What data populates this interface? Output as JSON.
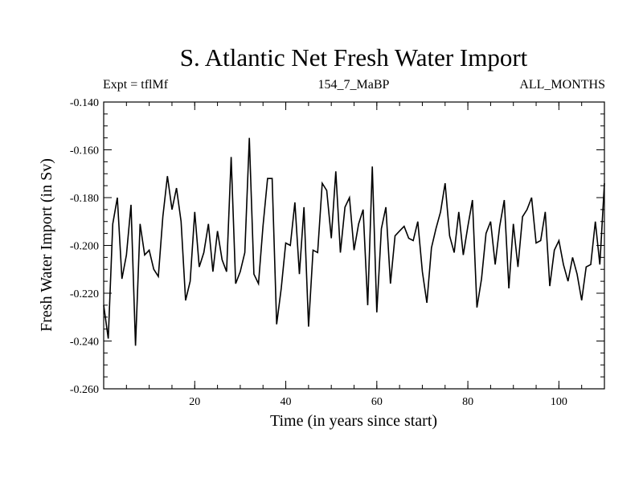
{
  "chart_data": {
    "type": "line",
    "title": "S. Atlantic Net Fresh Water Import",
    "subtitle_left": "Expt = tflMf",
    "subtitle_center": "154_7_MaBP",
    "subtitle_right": "ALL_MONTHS",
    "xlabel": "Time (in years since start)",
    "ylabel": "Fresh Water Import (in Sv)",
    "xlim": [
      0,
      110
    ],
    "ylim": [
      -0.26,
      -0.14
    ],
    "xticks": [
      20,
      40,
      60,
      80,
      100
    ],
    "xtick_labels": [
      "20",
      "40",
      "60",
      "80",
      "100"
    ],
    "yticks": [
      -0.26,
      -0.24,
      -0.22,
      -0.2,
      -0.18,
      -0.16,
      -0.14
    ],
    "ytick_labels": [
      "-0.260",
      "-0.240",
      "-0.220",
      "-0.200",
      "-0.180",
      "-0.160",
      "-0.140"
    ],
    "grid": false,
    "series": [
      {
        "name": "Fresh Water Import",
        "x": [
          0,
          1,
          2,
          3,
          4,
          5,
          6,
          7,
          8,
          9,
          10,
          11,
          12,
          13,
          14,
          15,
          16,
          17,
          18,
          19,
          20,
          21,
          22,
          23,
          24,
          25,
          26,
          27,
          28,
          29,
          30,
          31,
          32,
          33,
          34,
          35,
          36,
          37,
          38,
          39,
          40,
          41,
          42,
          43,
          44,
          45,
          46,
          47,
          48,
          49,
          50,
          51,
          52,
          53,
          54,
          55,
          56,
          57,
          58,
          59,
          60,
          61,
          62,
          63,
          64,
          65,
          66,
          67,
          68,
          69,
          70,
          71,
          72,
          73,
          74,
          75,
          76,
          77,
          78,
          79,
          80,
          81,
          82,
          83,
          84,
          85,
          86,
          87,
          88,
          89,
          90,
          91,
          92,
          93,
          94,
          95,
          96,
          97,
          98,
          99,
          100,
          101,
          102,
          103,
          104,
          105,
          106,
          107,
          108,
          109,
          110
        ],
        "values": [
          -0.225,
          -0.239,
          -0.191,
          -0.18,
          -0.214,
          -0.204,
          -0.183,
          -0.242,
          -0.191,
          -0.204,
          -0.202,
          -0.21,
          -0.213,
          -0.188,
          -0.171,
          -0.185,
          -0.176,
          -0.19,
          -0.223,
          -0.215,
          -0.186,
          -0.209,
          -0.203,
          -0.191,
          -0.211,
          -0.194,
          -0.206,
          -0.211,
          -0.163,
          -0.216,
          -0.211,
          -0.203,
          -0.155,
          -0.212,
          -0.216,
          -0.192,
          -0.172,
          -0.172,
          -0.233,
          -0.218,
          -0.199,
          -0.2,
          -0.182,
          -0.212,
          -0.184,
          -0.234,
          -0.202,
          -0.203,
          -0.174,
          -0.177,
          -0.197,
          -0.169,
          -0.203,
          -0.184,
          -0.18,
          -0.202,
          -0.191,
          -0.185,
          -0.225,
          -0.167,
          -0.228,
          -0.193,
          -0.184,
          -0.216,
          -0.196,
          -0.194,
          -0.192,
          -0.197,
          -0.198,
          -0.19,
          -0.211,
          -0.224,
          -0.201,
          -0.193,
          -0.186,
          -0.174,
          -0.196,
          -0.203,
          -0.186,
          -0.204,
          -0.192,
          -0.181,
          -0.226,
          -0.214,
          -0.195,
          -0.19,
          -0.208,
          -0.192,
          -0.181,
          -0.218,
          -0.191,
          -0.209,
          -0.188,
          -0.185,
          -0.18,
          -0.199,
          -0.198,
          -0.186,
          -0.217,
          -0.202,
          -0.198,
          -0.208,
          -0.215,
          -0.205,
          -0.212,
          -0.223,
          -0.209,
          -0.208,
          -0.19,
          -0.208,
          -0.174
        ]
      }
    ]
  }
}
